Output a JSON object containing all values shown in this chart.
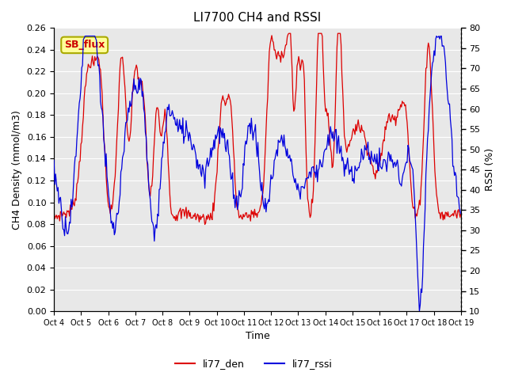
{
  "title": "LI7700 CH4 and RSSI",
  "xlabel": "Time",
  "ylabel_left": "CH4 Density (mmol/m3)",
  "ylabel_right": "RSSI (%)",
  "ylim_left": [
    0.0,
    0.26
  ],
  "ylim_right": [
    10,
    80
  ],
  "yticks_left": [
    0.0,
    0.02,
    0.04,
    0.06,
    0.08,
    0.1,
    0.12,
    0.14,
    0.16,
    0.18,
    0.2,
    0.22,
    0.24,
    0.26
  ],
  "yticks_right": [
    10,
    15,
    20,
    25,
    30,
    35,
    40,
    45,
    50,
    55,
    60,
    65,
    70,
    75,
    80
  ],
  "xtick_labels": [
    "Oct 4",
    "Oct 5",
    "Oct 6",
    "Oct 7",
    "Oct 8",
    "Oct 9",
    "Oct 10",
    "Oct 11",
    "Oct 12",
    "Oct 13",
    "Oct 14",
    "Oct 15",
    "Oct 16",
    "Oct 17",
    "Oct 18",
    "Oct 19"
  ],
  "color_ch4": "#dd0000",
  "color_rssi": "#0000dd",
  "legend_labels": [
    "li77_den",
    "li77_rssi"
  ],
  "annotation_text": "SB_flux",
  "bg_plot": "#e8e8e8",
  "bg_fig": "#ffffff",
  "grid_color": "#ffffff"
}
